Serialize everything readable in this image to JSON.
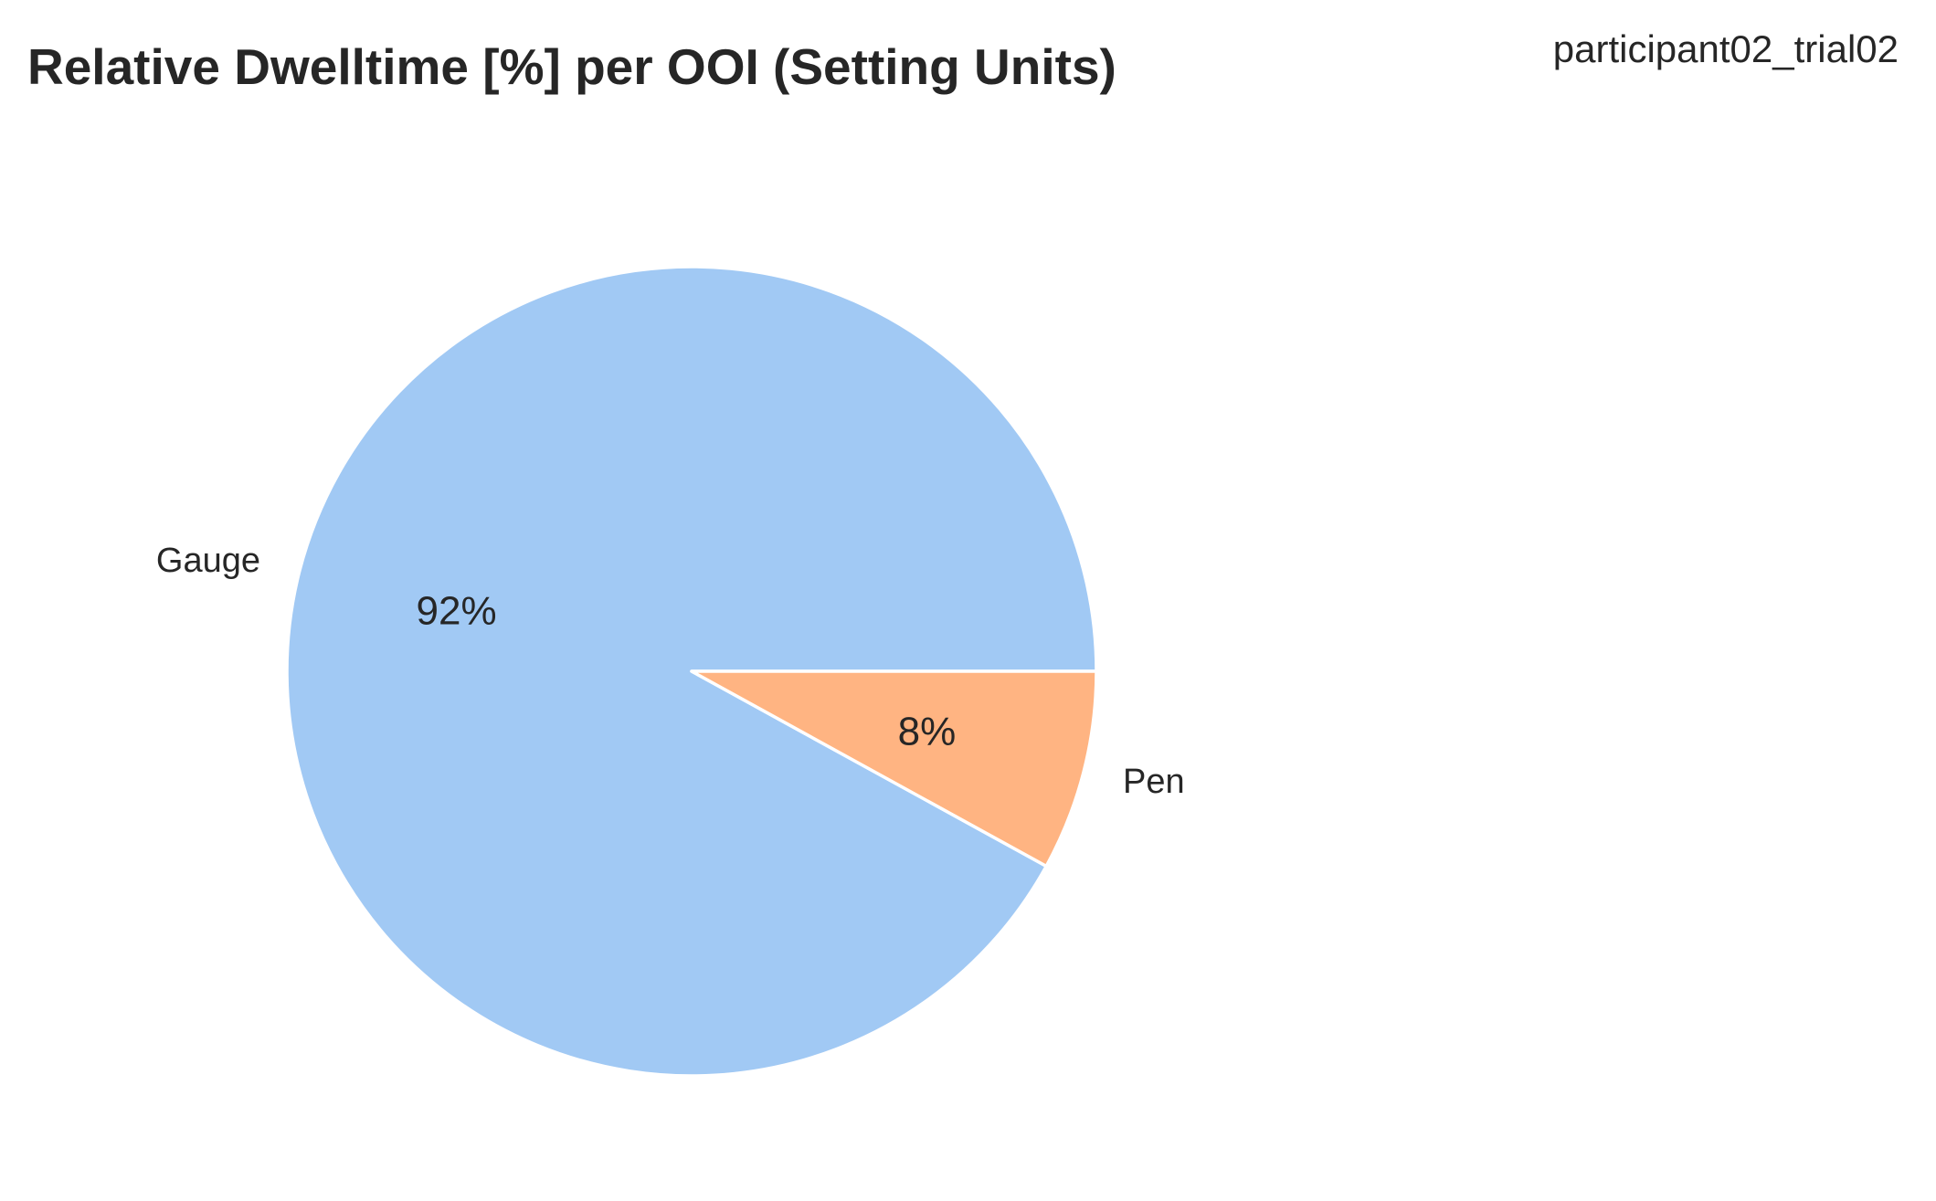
{
  "chart_data": {
    "type": "pie",
    "title": "Relative Dwelltime [%] per OOI (Setting Units)",
    "subtitle": "participant02_trial02",
    "categories": [
      "Gauge",
      "Pen"
    ],
    "values": [
      92,
      8
    ],
    "value_labels": [
      "92%",
      "8%"
    ],
    "colors": [
      "#a1c9f4",
      "#ffb482"
    ],
    "edge_color": "#ffffff",
    "start_angle_deg": 0,
    "direction": "counterclockwise",
    "legend": "none"
  }
}
